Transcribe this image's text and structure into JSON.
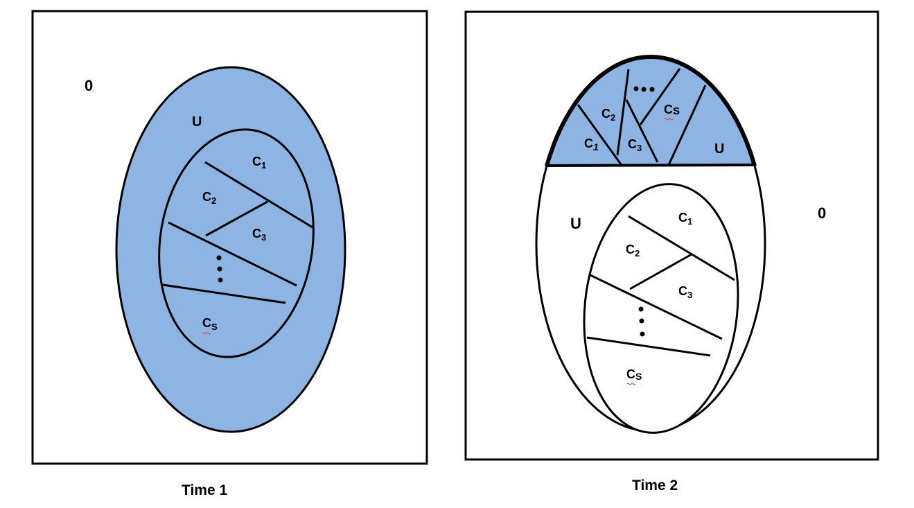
{
  "colors": {
    "fill": "#8eb4e3",
    "stroke": "#000000",
    "background": "#ffffff"
  },
  "panel_time1": {
    "caption": "Time 1",
    "zero_label": "0",
    "u_label": "U",
    "c1": {
      "base": "C",
      "sub": "1"
    },
    "c2": {
      "base": "C",
      "sub": "2"
    },
    "c3": {
      "base": "C",
      "sub": "3"
    },
    "cs": {
      "base": "C",
      "sub": "S"
    }
  },
  "panel_time2": {
    "caption": "Time 2",
    "zero_label": "0",
    "u_label_left": "U",
    "u_label_cap": "U",
    "c1": {
      "base": "C",
      "sub": "1"
    },
    "c2": {
      "base": "C",
      "sub": "2"
    },
    "c3": {
      "base": "C",
      "sub": "3"
    },
    "cs": {
      "base": "C",
      "sub": "S"
    },
    "cap": {
      "c1": {
        "base": "C",
        "sub": "1"
      },
      "c2": {
        "base": "C",
        "sub": "2"
      },
      "c3": {
        "base": "C",
        "sub": "3"
      },
      "cs": {
        "base": "C",
        "sub": "S"
      }
    }
  }
}
